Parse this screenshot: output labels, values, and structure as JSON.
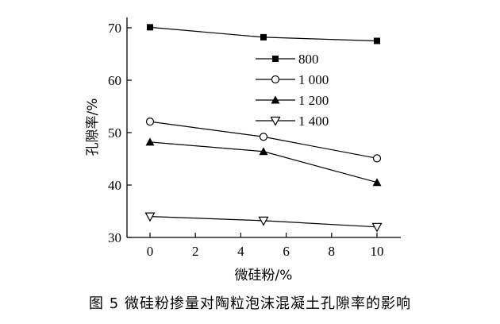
{
  "caption": "图 5   微硅粉掺量对陶粒泡沫混凝土孔隙率的影响",
  "chart_data": {
    "type": "line",
    "xlabel": "微硅粉/%",
    "ylabel": "孔隙率/%",
    "xlim": [
      0,
      10
    ],
    "ylim": [
      30,
      70
    ],
    "xticks": [
      0,
      2,
      4,
      6,
      8,
      10
    ],
    "yticks": [
      30,
      40,
      50,
      60,
      70
    ],
    "x": [
      0,
      5,
      10
    ],
    "grid": false,
    "legend_position": "top-right",
    "series": [
      {
        "name": "800",
        "marker": "square-filled",
        "values": [
          70.1,
          68.2,
          67.5
        ]
      },
      {
        "name": "1 000",
        "marker": "circle-open",
        "values": [
          52.1,
          49.2,
          45.1
        ]
      },
      {
        "name": "1 200",
        "marker": "triangle-up-filled",
        "values": [
          48.2,
          46.4,
          40.5
        ]
      },
      {
        "name": "1 400",
        "marker": "triangle-down-open",
        "values": [
          34.0,
          33.2,
          32.0
        ]
      }
    ]
  }
}
